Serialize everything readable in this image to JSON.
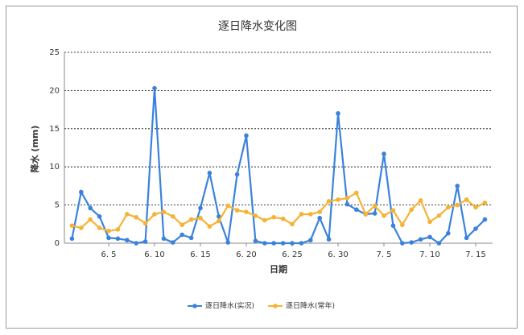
{
  "chart_data": {
    "type": "line",
    "title": "逐日降水变化图",
    "x_label": "日期",
    "y_label": "降水 (mm)",
    "categories": [
      null,
      null,
      null,
      null,
      "6. 5",
      null,
      null,
      null,
      null,
      "6. 10",
      null,
      null,
      null,
      null,
      "6. 15",
      null,
      null,
      null,
      null,
      "6. 20",
      null,
      null,
      null,
      null,
      "6. 25",
      null,
      null,
      null,
      null,
      "6. 30",
      null,
      null,
      null,
      null,
      "7. 5",
      null,
      null,
      null,
      null,
      "7. 10",
      null,
      null,
      null,
      null,
      "7. 15",
      null
    ],
    "series": [
      {
        "name": "逐日降水(实况)",
        "color": "#3b82dc",
        "values": [
          0.6,
          6.7,
          4.6,
          3.5,
          0.7,
          0.6,
          0.4,
          0.0,
          0.2,
          20.3,
          0.6,
          0.1,
          1.1,
          0.7,
          4.6,
          9.2,
          3.5,
          0.1,
          9.0,
          14.1,
          0.3,
          0.0,
          0.0,
          0.0,
          0.0,
          0.0,
          0.4,
          3.3,
          0.5,
          17.0,
          5.1,
          4.4,
          3.8,
          3.9,
          11.7,
          2.3,
          0.0,
          0.1,
          0.5,
          0.8,
          0.0,
          1.3,
          7.5,
          0.7,
          1.9,
          3.1
        ]
      },
      {
        "name": "逐日降水(常年)",
        "color": "#f5b335",
        "values": [
          2.3,
          2.0,
          3.1,
          2.0,
          1.6,
          1.8,
          3.8,
          3.4,
          2.6,
          3.8,
          4.1,
          3.5,
          2.4,
          3.1,
          3.3,
          2.2,
          2.9,
          4.9,
          4.3,
          4.1,
          3.6,
          3.0,
          3.4,
          3.2,
          2.5,
          3.8,
          3.8,
          4.1,
          5.5,
          5.7,
          5.9,
          6.6,
          3.8,
          4.9,
          3.6,
          4.3,
          2.4,
          4.4,
          5.6,
          2.8,
          3.6,
          4.7,
          5.0,
          5.7,
          4.7,
          5.3
        ]
      }
    ],
    "ylim": [
      0,
      25
    ],
    "yticks": [
      0,
      5,
      10,
      15,
      20,
      25
    ],
    "grid": true,
    "legend": "bottom"
  }
}
